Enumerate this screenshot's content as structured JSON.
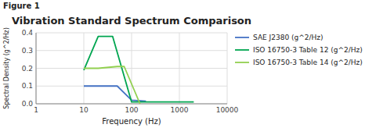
{
  "chart_data": {
    "type": "line",
    "title": "Vibration Standard Spectrum Comparison",
    "annotations": [
      "Figure 1"
    ],
    "x_label": "Frequency (Hz)",
    "y_label": "Spectral Density (g^2/Hz)",
    "log": "x",
    "xlim": [
      1,
      10000
    ],
    "xticks": [
      1,
      10,
      100,
      1000,
      10000
    ],
    "ylim": [
      0,
      0.4
    ],
    "yticks": [
      {
        "value": 0,
        "label": "0.0"
      },
      0.1,
      0.2,
      0.3,
      0.4
    ],
    "grid": true,
    "legend": "right",
    "series": [
      {
        "name": "SAE J2380 (g^2/Hz)",
        "color": "#4472C4",
        "x": [
          10,
          50,
          100,
          200
        ],
        "values": [
          0.1,
          0.1,
          0.02,
          0.015
        ]
      },
      {
        "name": "ISO 16750-3 Table 12 (g^2/Hz)",
        "color": "#00A550",
        "x": [
          10,
          20,
          40,
          100,
          2000
        ],
        "values": [
          0.19,
          0.38,
          0.38,
          0.01,
          0.01
        ]
      },
      {
        "name": "ISO 16750-3 Table 14 (g^2/Hz)",
        "color": "#92D050",
        "x": [
          10,
          20,
          50,
          70,
          150
        ],
        "values": [
          0.2,
          0.2,
          0.21,
          0.21,
          0.0
        ]
      }
    ]
  }
}
